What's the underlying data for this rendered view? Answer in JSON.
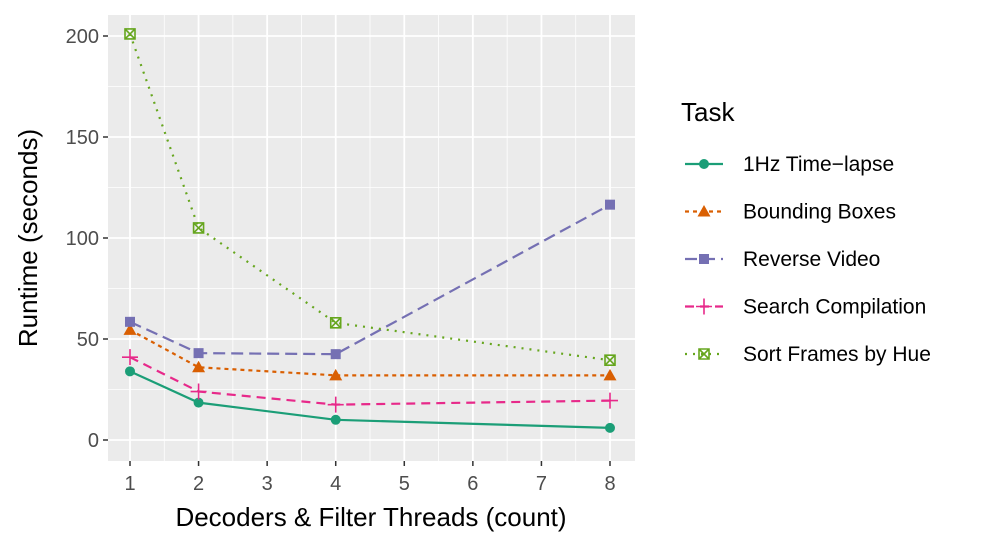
{
  "chart_data": {
    "type": "line",
    "xlabel": "Decoders & Filter Threads (count)",
    "ylabel": "Runtime (seconds)",
    "xlim": [
      0.65,
      8.35
    ],
    "ylim": [
      -10,
      211
    ],
    "x_ticks": [
      1,
      2,
      3,
      4,
      5,
      6,
      7,
      8
    ],
    "y_ticks": [
      0,
      50,
      100,
      150,
      200
    ],
    "grid": true,
    "panel_background": "#ebebeb",
    "legend": {
      "title": "Task",
      "position": "right"
    },
    "series": [
      {
        "name": "1Hz Time−lapse",
        "color": "#1b9e77",
        "marker": "circle",
        "dash": "solid",
        "x": [
          1,
          2,
          4,
          8
        ],
        "values": [
          34,
          18.5,
          10,
          6
        ]
      },
      {
        "name": "Bounding Boxes",
        "color": "#d95f02",
        "marker": "triangle",
        "dash": "short-dash",
        "x": [
          1,
          2,
          4,
          8
        ],
        "values": [
          54.5,
          36,
          32,
          32
        ]
      },
      {
        "name": "Reverse Video",
        "color": "#7570b3",
        "marker": "square",
        "dash": "long-dash",
        "x": [
          1,
          2,
          4,
          8
        ],
        "values": [
          58.5,
          43,
          42.5,
          116.5
        ]
      },
      {
        "name": "Search Compilation",
        "color": "#e7298a",
        "marker": "plus",
        "dash": "dash",
        "x": [
          1,
          2,
          4,
          8
        ],
        "values": [
          41,
          24,
          17.5,
          19.5
        ]
      },
      {
        "name": "Sort Frames by Hue",
        "color": "#66a61e",
        "marker": "boxed-x",
        "dash": "dotted",
        "x": [
          1,
          2,
          4,
          8
        ],
        "values": [
          201,
          105,
          58,
          39.5
        ]
      }
    ]
  }
}
